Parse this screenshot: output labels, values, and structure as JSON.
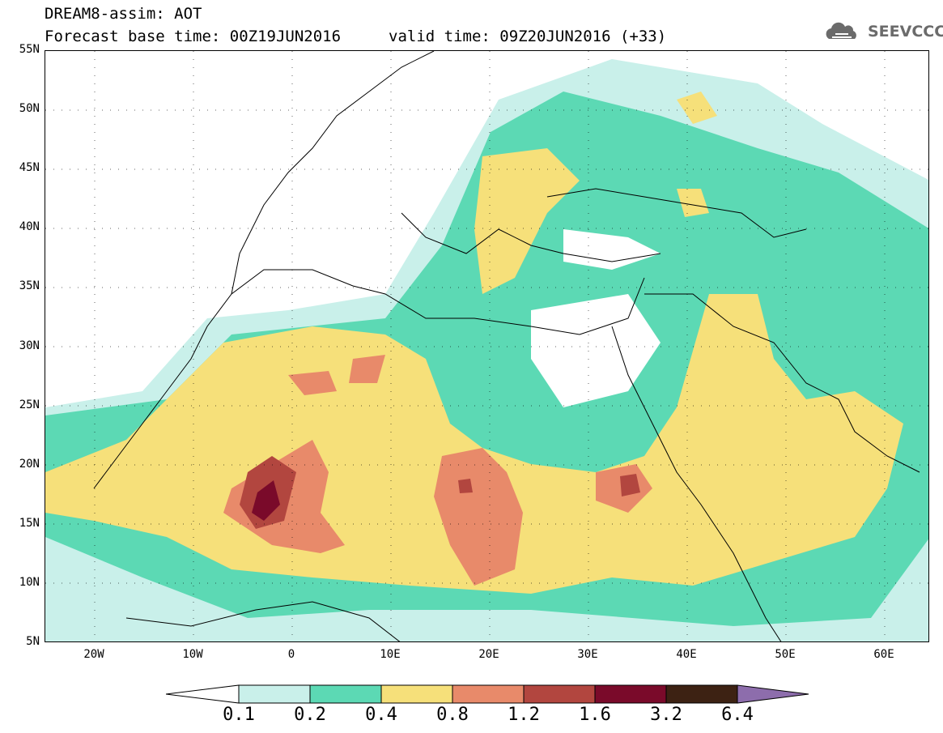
{
  "title": {
    "line1": "DREAM8-assim: AOT",
    "line2": "Forecast base time: 00Z19JUN2016",
    "valid": "valid time: 09Z20JUN2016 (+33)"
  },
  "logo": {
    "text": "SEEVCCC",
    "icon": "cloud-icon"
  },
  "lat_labels": [
    "55N",
    "50N",
    "45N",
    "40N",
    "35N",
    "30N",
    "25N",
    "20N",
    "15N",
    "10N",
    "5N"
  ],
  "lon_labels": [
    "20W",
    "10W",
    "0",
    "10E",
    "20E",
    "30E",
    "40E",
    "50E",
    "60E"
  ],
  "colorbar": {
    "labels": [
      "0.1",
      "0.2",
      "0.4",
      "0.8",
      "1.2",
      "1.6",
      "3.2",
      "6.4"
    ],
    "colors": [
      "#ffffff",
      "#c9f0ea",
      "#5cd9b4",
      "#f6e07a",
      "#e88a6a",
      "#b2463f",
      "#7a0a2a",
      "#3d2213",
      "#8d6dac"
    ]
  },
  "chart_data": {
    "type": "heatmap",
    "variable": "AOT",
    "model": "DREAM8-assim",
    "lat_range": [
      5,
      55
    ],
    "lon_range": [
      -25,
      65
    ],
    "levels": [
      0.1,
      0.2,
      0.4,
      0.8,
      1.2,
      1.6,
      3.2,
      6.4
    ]
  }
}
